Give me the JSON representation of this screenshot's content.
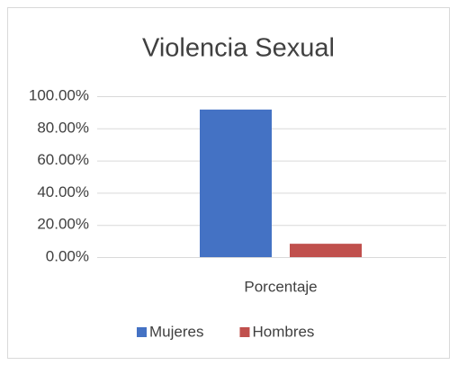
{
  "chart_data": {
    "type": "bar",
    "title": "Violencia Sexual",
    "categories": [
      "Porcentaje"
    ],
    "series": [
      {
        "name": "Mujeres",
        "color": "#4472c4",
        "values": [
          91.7
        ]
      },
      {
        "name": "Hombres",
        "color": "#c0504d",
        "values": [
          8.3
        ]
      }
    ],
    "ylim": [
      0,
      100
    ],
    "yticks": [
      {
        "value": 0,
        "label": "0.00%"
      },
      {
        "value": 20,
        "label": "20.00%"
      },
      {
        "value": 40,
        "label": "40.00%"
      },
      {
        "value": 60,
        "label": "60.00%"
      },
      {
        "value": 80,
        "label": "80.00%"
      },
      {
        "value": 100,
        "label": "100.00%"
      }
    ],
    "grid": true,
    "legend": "bottom"
  }
}
